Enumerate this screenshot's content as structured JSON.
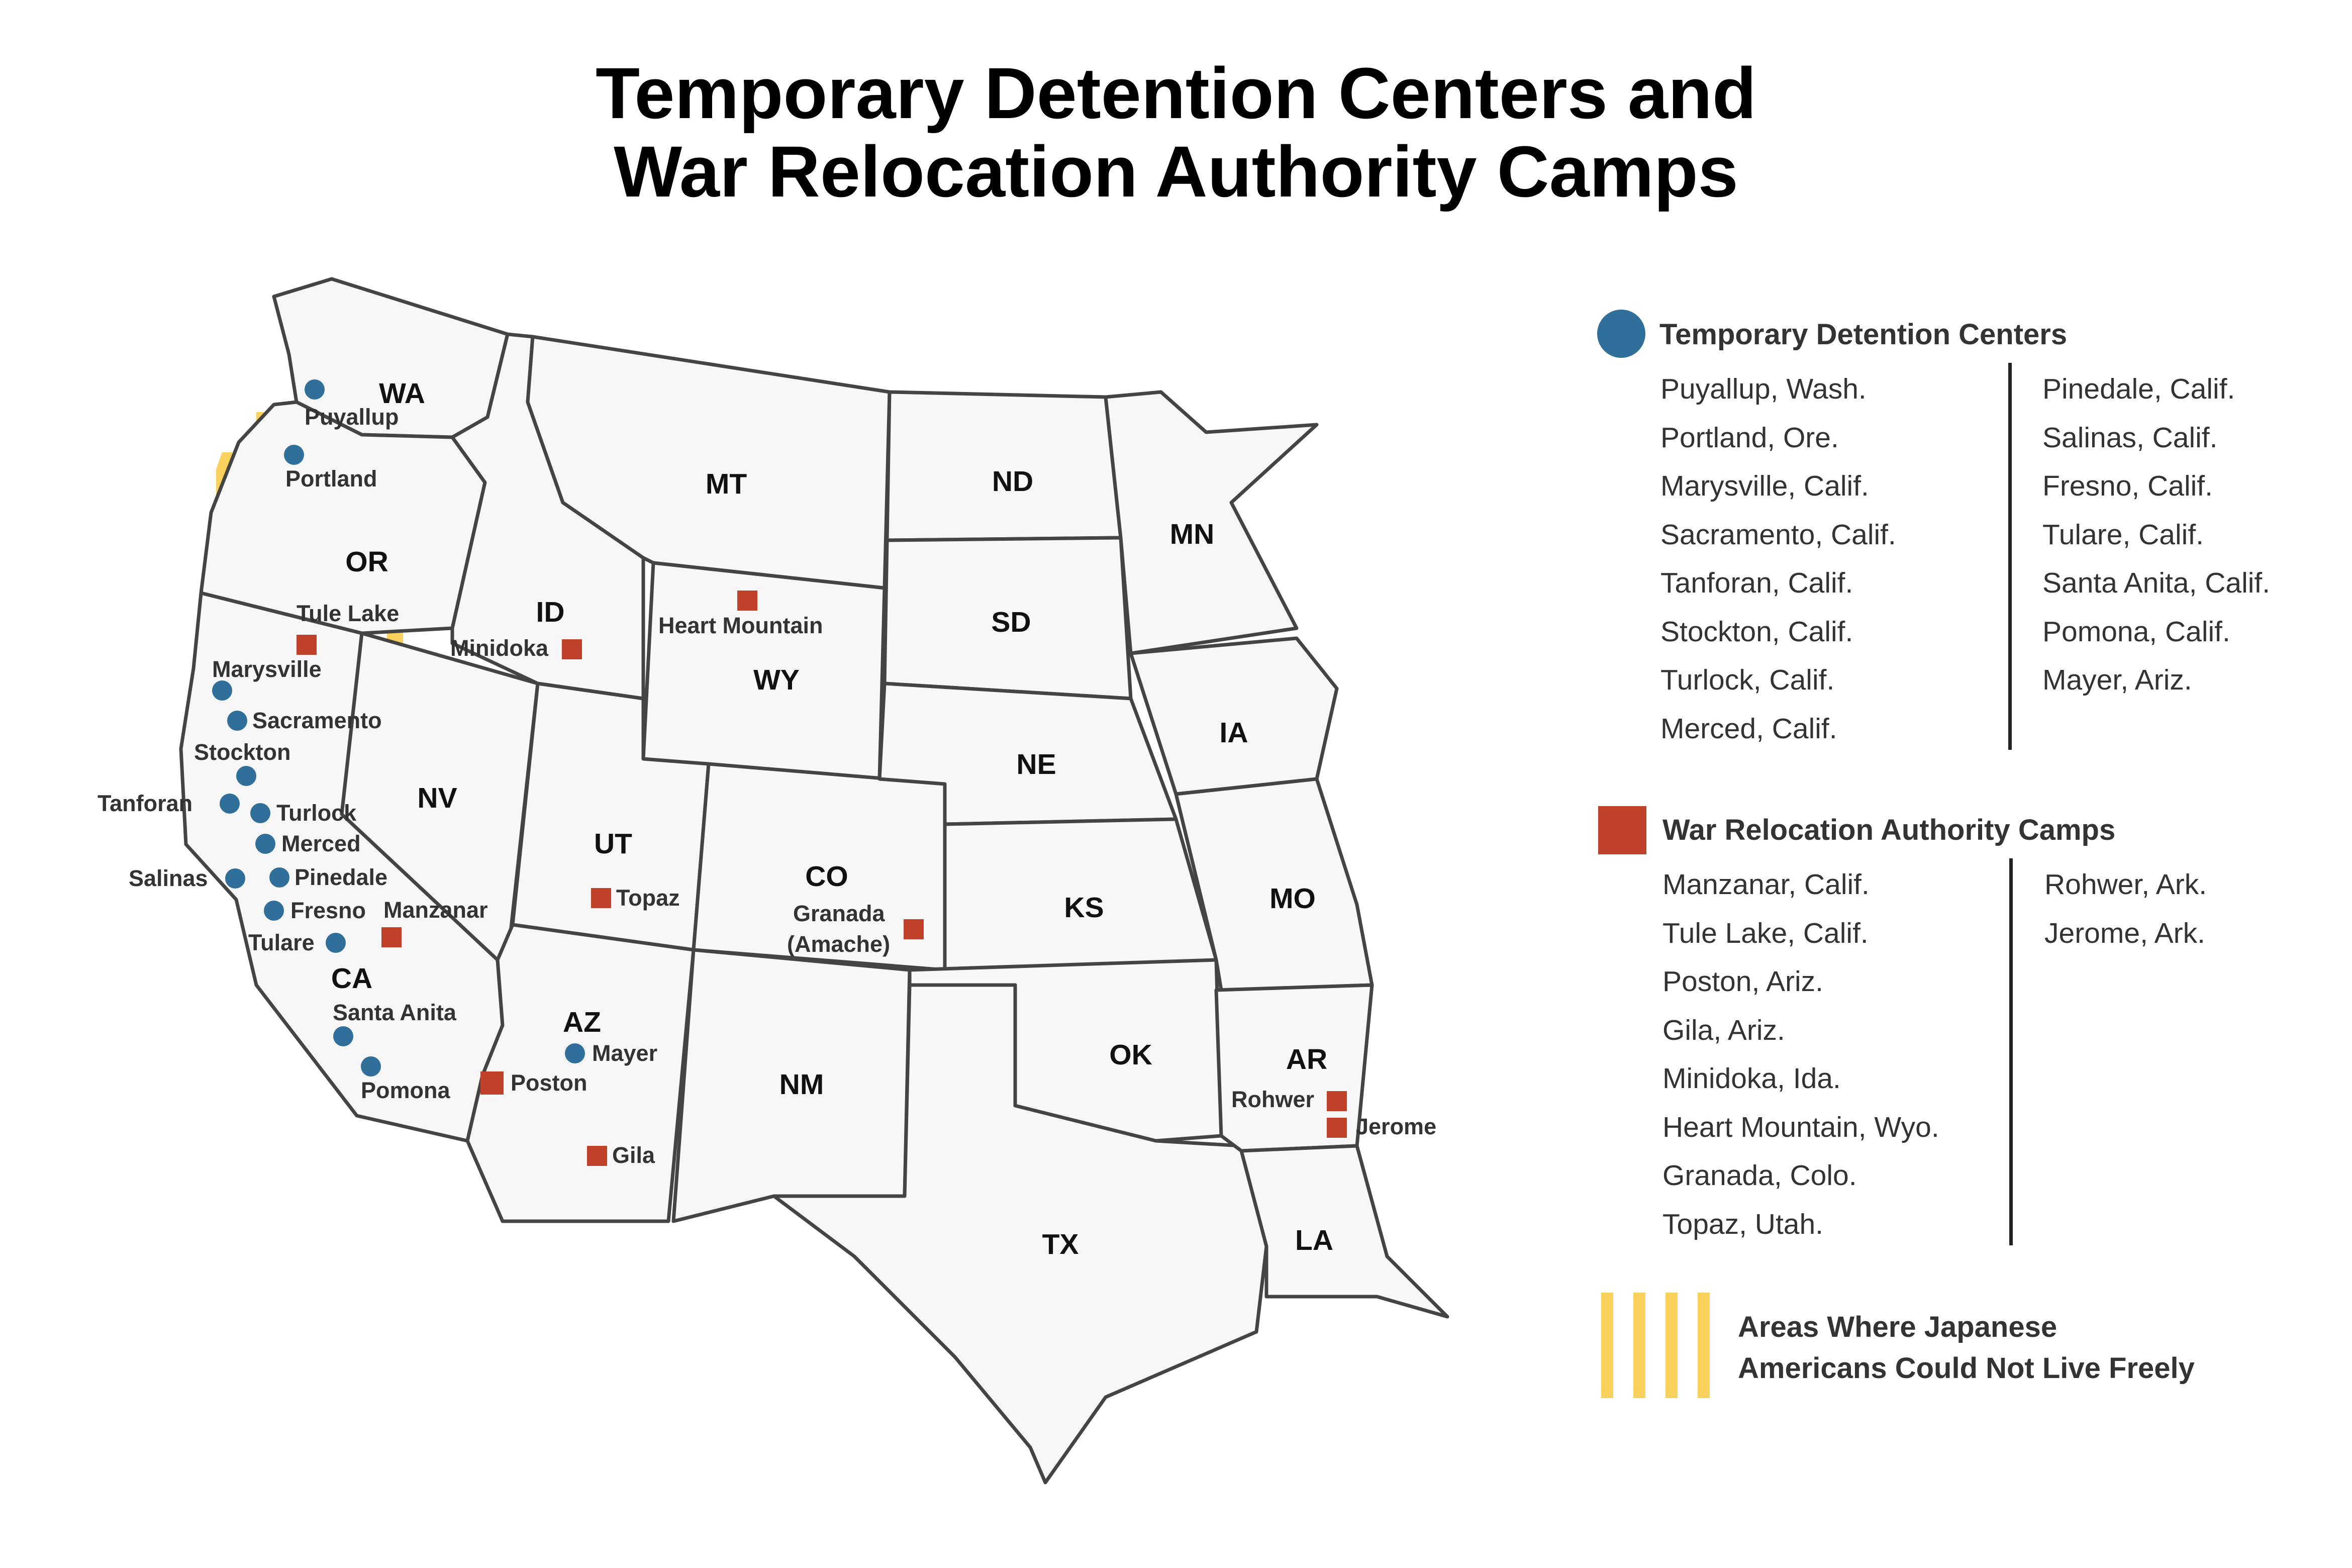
{
  "title": {
    "line1": "Temporary Detention Centers and",
    "line2": "War Relocation Authority Camps"
  },
  "states": [
    "WA",
    "OR",
    "CA",
    "ID",
    "NV",
    "MT",
    "WY",
    "UT",
    "AZ",
    "CO",
    "NM",
    "ND",
    "SD",
    "NE",
    "KS",
    "OK",
    "TX",
    "MN",
    "IA",
    "MO",
    "AR",
    "LA"
  ],
  "detention_centers": {
    "legend_label": "Temporary Detention Centers",
    "map_labels": [
      "Puyallup",
      "Portland",
      "Marysville",
      "Sacramento",
      "Stockton",
      "Tanforan",
      "Turlock",
      "Merced",
      "Salinas",
      "Pinedale",
      "Fresno",
      "Tulare",
      "Santa Anita",
      "Pomona",
      "Mayer"
    ],
    "list_col1": [
      "Puyallup, Wash.",
      "Portland, Ore.",
      "Marysville, Calif.",
      "Sacramento, Calif.",
      "Tanforan, Calif.",
      "Stockton, Calif.",
      "Turlock, Calif.",
      "Merced, Calif."
    ],
    "list_col2": [
      "Pinedale, Calif.",
      "Salinas, Calif.",
      "Fresno, Calif.",
      "Tulare, Calif.",
      "Santa Anita, Calif.",
      "Pomona, Calif.",
      "Mayer, Ariz."
    ],
    "color": "#2f6f9a"
  },
  "wra_camps": {
    "legend_label": "War Relocation Authority Camps",
    "map_labels": [
      "Tule Lake",
      "Minidoka",
      "Heart Mountain",
      "Manzanar",
      "Topaz",
      "Granada",
      "(Amache)",
      "Poston",
      "Gila",
      "Rohwer",
      "Jerome"
    ],
    "list_col1": [
      "Manzanar, Calif.",
      "Tule Lake, Calif.",
      "Poston, Ariz.",
      "Gila, Ariz.",
      "Minidoka, Ida.",
      "Heart Mountain, Wyo.",
      "Granada, Colo.",
      "Topaz, Utah."
    ],
    "list_col2": [
      "Rohwer, Ark.",
      "Jerome, Ark."
    ],
    "color": "#c0412a"
  },
  "exclusion_zone": {
    "legend_line1": "Areas Where Japanese",
    "legend_line2": "Americans Could Not Live Freely",
    "color": "#fbd15e"
  }
}
